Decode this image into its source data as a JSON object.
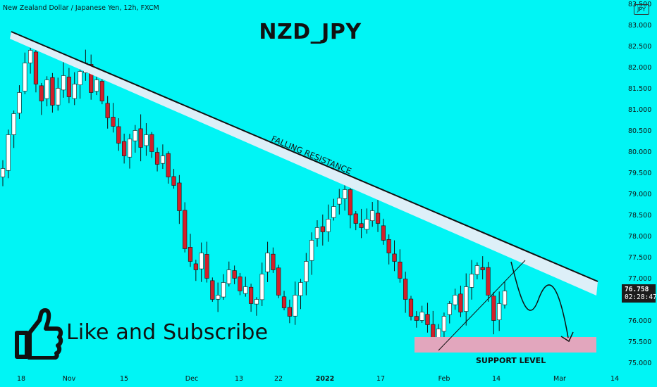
{
  "header": {
    "symbol_title": "New Zealand Dollar / Japanese Yen, 12h, FXCM",
    "currency_badge": "JPY"
  },
  "main_title": "NZD_JPY",
  "cta": {
    "text": "Like and Subscribe",
    "icon": "thumbs-up-icon"
  },
  "price_tag": {
    "price": "76.758",
    "countdown": "02:28:47"
  },
  "annotations": {
    "resistance": "FALLING RESISTANCE",
    "support": "SUPPORT LEVEL"
  },
  "colors": {
    "background": "#00f5f5",
    "up_candle": "#ffffff",
    "down_candle": "#d3202a",
    "wick": "#111111",
    "resistance_band": "#ddeff8",
    "support_zone": "#e2a6bd"
  },
  "chart_data": {
    "type": "candlestick",
    "title": "NZD_JPY",
    "symbol": "New Zealand Dollar / Japanese Yen, 12h, FXCM",
    "ylim": [
      75.0,
      83.5
    ],
    "y_ticks": [
      "75.000",
      "75.500",
      "76.000",
      "76.500",
      "77.000",
      "77.500",
      "78.000",
      "78.500",
      "79.000",
      "79.500",
      "80.000",
      "80.500",
      "81.000",
      "81.500",
      "82.000",
      "82.500",
      "83.000",
      "83.500"
    ],
    "x_tick_labels": [
      "18",
      "Nov",
      "15",
      "Dec",
      "13",
      "22",
      "2022",
      "17",
      "Feb",
      "14",
      "Mar",
      "14"
    ],
    "last_price": 76.758,
    "resistance_line": {
      "label": "FALLING RESISTANCE",
      "start": [
        "Oct 18",
        82.85
      ],
      "end": [
        "Mar 14",
        77.0
      ]
    },
    "support_zone": {
      "label": "SUPPORT LEVEL",
      "low": 75.25,
      "high": 75.6
    },
    "candle_closes_approx": [
      79.6,
      80.4,
      80.9,
      81.4,
      82.1,
      82.4,
      81.6,
      81.2,
      81.7,
      81.1,
      81.5,
      81.8,
      81.3,
      81.6,
      81.9,
      82.1,
      81.4,
      81.7,
      81.2,
      80.8,
      80.6,
      80.2,
      79.9,
      80.3,
      80.5,
      80.1,
      80.4,
      80.0,
      79.7,
      79.9,
      79.4,
      79.2,
      78.6,
      77.7,
      77.4,
      77.2,
      77.6,
      77.0,
      76.5,
      76.6,
      76.9,
      77.2,
      77.0,
      76.7,
      76.8,
      76.4,
      76.5,
      77.1,
      77.6,
      77.2,
      76.6,
      76.3,
      76.1,
      76.6,
      76.9,
      77.4,
      77.9,
      78.2,
      78.1,
      78.4,
      78.7,
      78.9,
      79.1,
      78.5,
      78.3,
      78.2,
      78.4,
      78.6,
      78.3,
      77.9,
      77.6,
      77.4,
      77.0,
      76.5,
      76.1,
      76.0,
      76.2,
      75.9,
      75.5,
      75.8,
      76.1,
      76.4,
      76.6,
      76.2,
      76.8,
      77.1,
      77.3,
      77.2,
      76.6,
      76.0,
      76.4,
      76.7
    ],
    "projected_path": "down from ~77.3 to ~76.1, bounce to ~76.9, then fall to ~75.5"
  }
}
